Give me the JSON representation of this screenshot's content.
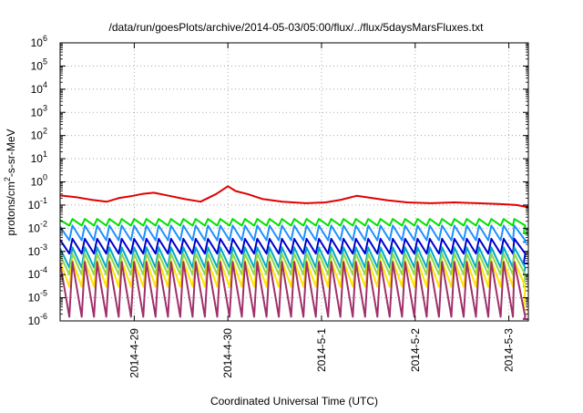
{
  "chart_data": {
    "type": "line",
    "title": "/data/run/goesPlots/archive/2014-05-03/05:00/flux/../flux/5daysMarsFluxes.txt",
    "xlabel": "Coordinated Universal Time (UTC)",
    "ylabel_parts": {
      "pre": "protons/cm",
      "sup": "2",
      "post": "-s-sr-MeV"
    },
    "y_scale": "log",
    "ylim": [
      1e-06,
      1000000.0
    ],
    "y_tick_exponents": [
      -6,
      -5,
      -4,
      -3,
      -2,
      -1,
      0,
      1,
      2,
      3,
      4,
      5,
      6
    ],
    "y_tick_base": "10",
    "xlim": [
      "2014-04-28T05:00",
      "2014-05-03T05:00"
    ],
    "x_ticks": [
      {
        "label": "2014-4-29",
        "date": "2014-04-29T00:00"
      },
      {
        "label": "2014-4-30",
        "date": "2014-04-30T00:00"
      },
      {
        "label": "2014-5-1",
        "date": "2014-05-01T00:00"
      },
      {
        "label": "2014-5-2",
        "date": "2014-05-02T00:00"
      },
      {
        "label": "2014-5-3",
        "date": "2014-05-03T00:00"
      }
    ],
    "grid": true,
    "legend": "none",
    "series": [
      {
        "color": "#e00000",
        "shape": "red",
        "points": [
          [
            "2014-04-28T05:00",
            0.26
          ],
          [
            "2014-04-28T09:00",
            0.22
          ],
          [
            "2014-04-28T13:00",
            0.17
          ],
          [
            "2014-04-28T17:00",
            0.14
          ],
          [
            "2014-04-28T20:00",
            0.2
          ],
          [
            "2014-04-28T23:00",
            0.24
          ],
          [
            "2014-04-29T02:00",
            0.3
          ],
          [
            "2014-04-29T05:00",
            0.34
          ],
          [
            "2014-04-29T09:00",
            0.25
          ],
          [
            "2014-04-29T13:00",
            0.18
          ],
          [
            "2014-04-29T17:00",
            0.14
          ],
          [
            "2014-04-29T21:00",
            0.3
          ],
          [
            "2014-04-30T00:00",
            0.65
          ],
          [
            "2014-04-30T02:00",
            0.4
          ],
          [
            "2014-04-30T05:00",
            0.3
          ],
          [
            "2014-04-30T09:00",
            0.18
          ],
          [
            "2014-04-30T14:00",
            0.14
          ],
          [
            "2014-04-30T20:00",
            0.12
          ],
          [
            "2014-05-01T01:00",
            0.13
          ],
          [
            "2014-05-01T05:00",
            0.17
          ],
          [
            "2014-05-01T09:00",
            0.25
          ],
          [
            "2014-05-01T13:00",
            0.2
          ],
          [
            "2014-05-01T17:00",
            0.16
          ],
          [
            "2014-05-01T22:00",
            0.13
          ],
          [
            "2014-05-02T04:00",
            0.12
          ],
          [
            "2014-05-02T10:00",
            0.13
          ],
          [
            "2014-05-02T16:00",
            0.12
          ],
          [
            "2014-05-02T22:00",
            0.11
          ],
          [
            "2014-05-03T02:00",
            0.1
          ],
          [
            "2014-05-03T05:00",
            0.08
          ]
        ]
      },
      {
        "color": "#00e000",
        "shape": "saw",
        "teeth": 38,
        "range": [
          0.013,
          0.025
        ],
        "end_value": 0.006
      },
      {
        "color": "#1e90ff",
        "shape": "saw",
        "teeth": 38,
        "range": [
          0.003,
          0.013
        ],
        "end_value": 0.0025
      },
      {
        "color": "#0000cd",
        "shape": "saw",
        "teeth": 38,
        "range": [
          0.0008,
          0.0035
        ],
        "end_value": 0.0003
      },
      {
        "color": "#00a9c8",
        "shape": "saw",
        "teeth": 38,
        "range": [
          0.0002,
          0.0015
        ],
        "end_value": 0.0001
      },
      {
        "color": "#8fd850",
        "shape": "saw",
        "teeth": 38,
        "range": [
          0.0001,
          0.0008
        ],
        "end_value": 3e-05
      },
      {
        "color": "#ffe600",
        "shape": "saw",
        "teeth": 38,
        "range": [
          3e-05,
          0.0004
        ],
        "end_value": 3e-06
      },
      {
        "color": "#a0306a",
        "shape": "saw",
        "teeth": 38,
        "range": [
          1.5e-06,
          0.00035
        ],
        "end_value": 1.2e-06
      }
    ]
  }
}
